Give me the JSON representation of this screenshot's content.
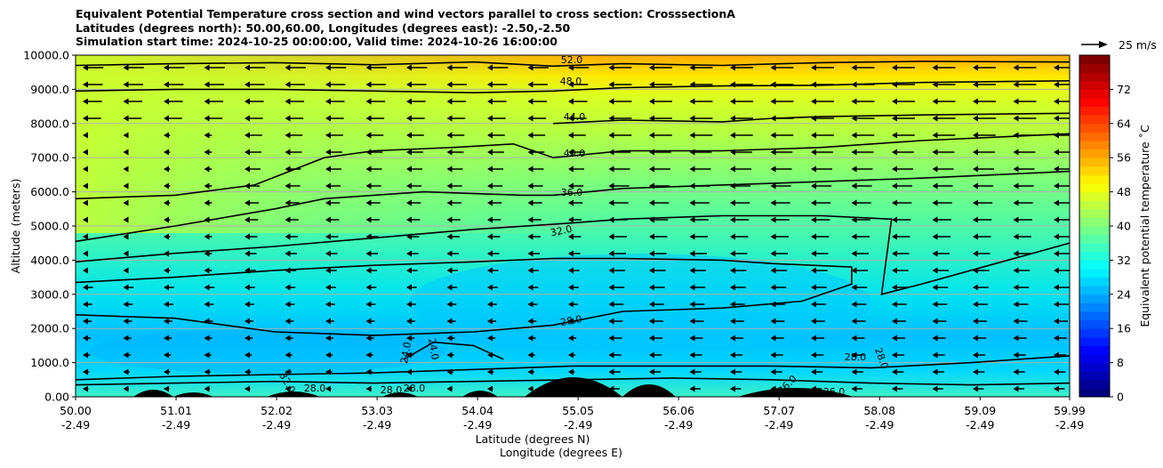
{
  "chart_data": {
    "type": "heatmap",
    "title_lines": [
      "Equivalent Potential Temperature cross section and wind vectors parallel to cross section: CrosssectionA",
      "Latitudes (degrees north): 50.00,60.00, Longitudes (degrees east): -2.50,-2.50",
      "Simulation start time: 2024-10-25 00:00:00, Valid time: 2024-10-26 16:00:00"
    ],
    "xlabel_lat": "Latitude (degrees N)",
    "xlabel_lon": "Longitude (degrees E)",
    "ylabel": "Altitude (meters)",
    "x_range": [
      50.0,
      59.99
    ],
    "ylim": [
      0,
      10000
    ],
    "x_ticks": [
      {
        "lat": "50.00",
        "lon": "-2.49",
        "value": 50.0
      },
      {
        "lat": "51.01",
        "lon": "-2.49",
        "value": 51.01
      },
      {
        "lat": "52.02",
        "lon": "-2.49",
        "value": 52.02
      },
      {
        "lat": "53.03",
        "lon": "-2.49",
        "value": 53.03
      },
      {
        "lat": "54.04",
        "lon": "-2.49",
        "value": 54.04
      },
      {
        "lat": "55.05",
        "lon": "-2.49",
        "value": 55.05
      },
      {
        "lat": "56.06",
        "lon": "-2.49",
        "value": 56.06
      },
      {
        "lat": "57.07",
        "lon": "-2.49",
        "value": 57.07
      },
      {
        "lat": "58.08",
        "lon": "-2.49",
        "value": 58.08
      },
      {
        "lat": "59.09",
        "lon": "-2.49",
        "value": 59.09
      },
      {
        "lat": "59.99",
        "lon": "-2.49",
        "value": 59.99
      }
    ],
    "y_ticks": [
      {
        "label": "0.00",
        "value": 0
      },
      {
        "label": "1000.0",
        "value": 1000
      },
      {
        "label": "2000.0",
        "value": 2000
      },
      {
        "label": "3000.0",
        "value": 3000
      },
      {
        "label": "4000.0",
        "value": 4000
      },
      {
        "label": "5000.0",
        "value": 5000
      },
      {
        "label": "6000.0",
        "value": 6000
      },
      {
        "label": "7000.0",
        "value": 7000
      },
      {
        "label": "8000.0",
        "value": 8000
      },
      {
        "label": "9000.0",
        "value": 9000
      },
      {
        "label": "10000.0",
        "value": 10000
      }
    ],
    "colorbar": {
      "label": "Equivalent potential temperature ˚C",
      "min": 0,
      "max": 80,
      "ticks": [
        "0",
        "8",
        "16",
        "24",
        "32",
        "40",
        "48",
        "56",
        "64",
        "72"
      ],
      "colors": [
        "#00007f",
        "#0000ff",
        "#007fff",
        "#00ffff",
        "#7fff7f",
        "#ffff00",
        "#ff7f00",
        "#ff0000",
        "#7f0000"
      ]
    },
    "quiver_key": "25 m/s",
    "contour_labels": [
      "52.0",
      "48.0",
      "44.0",
      "40.0",
      "36.0",
      "32.0",
      "28.0",
      "24.0",
      "24.0",
      "32.0",
      "28.0",
      "28.0",
      "28.0",
      "28.0",
      "28.0",
      "36.0",
      "36.0"
    ],
    "contours": [
      {
        "level": 52,
        "points": [
          [
            50.0,
            9700
          ],
          [
            51,
            9750
          ],
          [
            52,
            9780
          ],
          [
            53,
            9720
          ],
          [
            54,
            9800
          ],
          [
            54.8,
            9680
          ],
          [
            55.5,
            9750
          ],
          [
            56.5,
            9700
          ],
          [
            57.5,
            9780
          ],
          [
            58.5,
            9820
          ],
          [
            59.99,
            9800
          ]
        ]
      },
      {
        "level": 48,
        "points": [
          [
            50.0,
            8950
          ],
          [
            51,
            9000
          ],
          [
            52,
            9000
          ],
          [
            53,
            8950
          ],
          [
            54,
            8900
          ],
          [
            54.8,
            8950
          ],
          [
            55.5,
            9050
          ],
          [
            56.5,
            9100
          ],
          [
            57.5,
            9120
          ],
          [
            58.5,
            9200
          ],
          [
            59.99,
            9250
          ]
        ]
      },
      {
        "level": 44,
        "points": [
          [
            54.8,
            8000
          ],
          [
            55.5,
            8100
          ],
          [
            56.5,
            8050
          ],
          [
            57.0,
            8150
          ],
          [
            57.5,
            8200
          ],
          [
            58.5,
            8250
          ],
          [
            59.99,
            8300
          ]
        ]
      },
      {
        "level": 40,
        "points": [
          [
            50.0,
            5800
          ],
          [
            51,
            5900
          ],
          [
            51.8,
            6200
          ],
          [
            52.5,
            7000
          ],
          [
            53,
            7200
          ],
          [
            53.8,
            7300
          ],
          [
            54.4,
            7400
          ],
          [
            54.8,
            7000
          ],
          [
            55.5,
            7200
          ],
          [
            56.5,
            7200
          ],
          [
            57.5,
            7300
          ],
          [
            58.5,
            7500
          ],
          [
            59.99,
            7700
          ]
        ]
      },
      {
        "level": 36,
        "points": [
          [
            50.0,
            4550
          ],
          [
            51,
            5000
          ],
          [
            52,
            5500
          ],
          [
            52.5,
            5800
          ],
          [
            53.5,
            6000
          ],
          [
            54.5,
            5900
          ],
          [
            54.8,
            5900
          ],
          [
            55.5,
            6100
          ],
          [
            56.5,
            6200
          ],
          [
            57.5,
            6300
          ],
          [
            58.5,
            6400
          ],
          [
            59.99,
            6600
          ]
        ]
      },
      {
        "level": 32,
        "points": [
          [
            50.0,
            3950
          ],
          [
            51,
            4200
          ],
          [
            52,
            4400
          ],
          [
            53,
            4650
          ],
          [
            54,
            4900
          ],
          [
            54.8,
            5050
          ],
          [
            55.5,
            5200
          ],
          [
            56.5,
            5300
          ],
          [
            57.5,
            5300
          ],
          [
            58.2,
            5200
          ],
          [
            58.1,
            3000
          ],
          [
            58.5,
            3300
          ],
          [
            59.99,
            4500
          ]
        ]
      },
      {
        "level": 28,
        "points": [
          [
            50.0,
            3350
          ],
          [
            51,
            3500
          ],
          [
            52,
            3700
          ],
          [
            53,
            3850
          ],
          [
            54,
            3950
          ],
          [
            54.8,
            4050
          ],
          [
            55.5,
            4050
          ],
          [
            56.5,
            4000
          ],
          [
            57,
            3900
          ],
          [
            57.8,
            3800
          ],
          [
            57.8,
            3300
          ],
          [
            57.3,
            2800
          ],
          [
            56.5,
            2600
          ],
          [
            55.5,
            2500
          ],
          [
            54.8,
            2100
          ],
          [
            54,
            1900
          ],
          [
            53,
            1800
          ],
          [
            52,
            1900
          ],
          [
            51,
            2300
          ],
          [
            50.0,
            2400
          ]
        ]
      },
      {
        "level": 24,
        "points": [
          [
            53.3,
            1100
          ],
          [
            53.6,
            1600
          ],
          [
            54.0,
            1500
          ],
          [
            54.3,
            1100
          ]
        ]
      },
      {
        "level": 28,
        "points": [
          [
            50.0,
            500
          ],
          [
            51,
            600
          ],
          [
            52,
            650
          ],
          [
            53,
            700
          ],
          [
            54,
            800
          ],
          [
            55,
            900
          ],
          [
            56,
            900
          ],
          [
            57,
            900
          ],
          [
            58,
            850
          ],
          [
            59,
            1000
          ],
          [
            59.99,
            1200
          ]
        ]
      },
      {
        "level": 32,
        "points": [
          [
            50.0,
            350
          ],
          [
            51,
            400
          ],
          [
            52,
            450
          ],
          [
            53,
            400
          ],
          [
            54,
            450
          ],
          [
            55,
            500
          ],
          [
            56,
            550
          ],
          [
            57,
            500
          ],
          [
            58,
            400
          ],
          [
            59,
            350
          ],
          [
            59.99,
            400
          ]
        ]
      }
    ]
  }
}
